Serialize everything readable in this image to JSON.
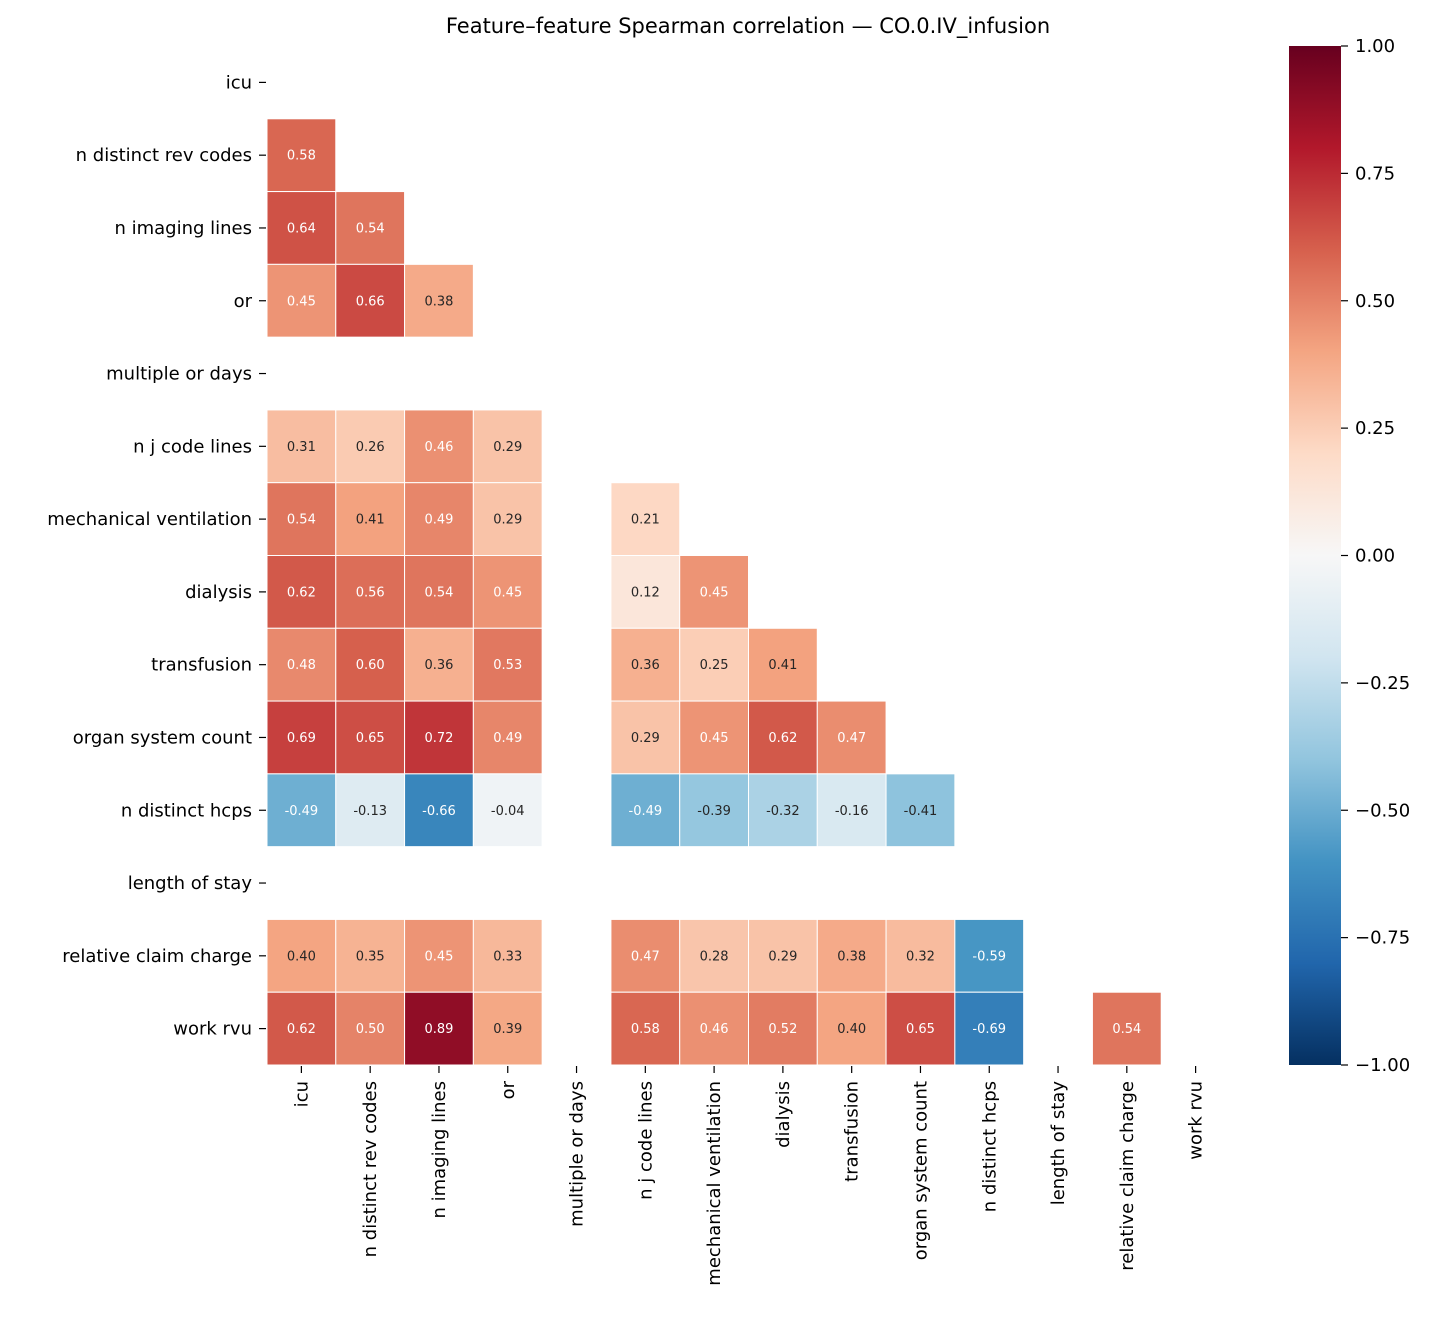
{
  "chart_data": {
    "type": "heatmap",
    "title": "Feature–feature Spearman correlation — CO.0.IV_infusion",
    "xlabel": "",
    "ylabel": "",
    "labels": [
      "icu",
      "n distinct rev codes",
      "n imaging lines",
      "or",
      "multiple or days",
      "n j code lines",
      "mechanical ventilation",
      "dialysis",
      "transfusion",
      "organ system count",
      "n distinct hcps",
      "length of stay",
      "relative claim charge",
      "work rvu"
    ],
    "matrix": [
      [],
      [
        0.58
      ],
      [
        0.64,
        0.54
      ],
      [
        0.45,
        0.66,
        0.38
      ],
      [
        null,
        null,
        null,
        null
      ],
      [
        0.31,
        0.26,
        0.46,
        0.29,
        null
      ],
      [
        0.54,
        0.41,
        0.49,
        0.29,
        null,
        0.21
      ],
      [
        0.62,
        0.56,
        0.54,
        0.45,
        null,
        0.12,
        0.45
      ],
      [
        0.48,
        0.6,
        0.36,
        0.53,
        null,
        0.36,
        0.25,
        0.41
      ],
      [
        0.69,
        0.65,
        0.72,
        0.49,
        null,
        0.29,
        0.45,
        0.62,
        0.47
      ],
      [
        -0.49,
        -0.13,
        -0.66,
        -0.04,
        null,
        -0.49,
        -0.39,
        -0.32,
        -0.16,
        -0.41
      ],
      [
        null,
        null,
        null,
        null,
        null,
        null,
        null,
        null,
        null,
        null,
        null
      ],
      [
        0.4,
        0.35,
        0.45,
        0.33,
        null,
        0.47,
        0.28,
        0.29,
        0.38,
        0.32,
        -0.59,
        null
      ],
      [
        0.62,
        0.5,
        0.89,
        0.39,
        null,
        0.58,
        0.46,
        0.52,
        0.4,
        0.65,
        -0.69,
        null,
        0.54
      ]
    ],
    "mask": "upper triangle including diagonal",
    "colormap": "RdBu_r",
    "vmin": -1,
    "vmax": 1,
    "colorbar_ticks": [
      "−1.00",
      "−0.75",
      "−0.50",
      "−0.25",
      "0.00",
      "0.25",
      "0.50",
      "0.75",
      "1.00"
    ],
    "colorbar_values": [
      -1,
      -0.75,
      -0.5,
      -0.25,
      0,
      0.25,
      0.5,
      0.75,
      1
    ],
    "colors": [
      "#053061",
      "#2166ac",
      "#4393c3",
      "#92c5de",
      "#d1e5f0",
      "#f7f7f7",
      "#fddbc7",
      "#f4a582",
      "#d6604d",
      "#b2182b",
      "#67001f"
    ]
  }
}
